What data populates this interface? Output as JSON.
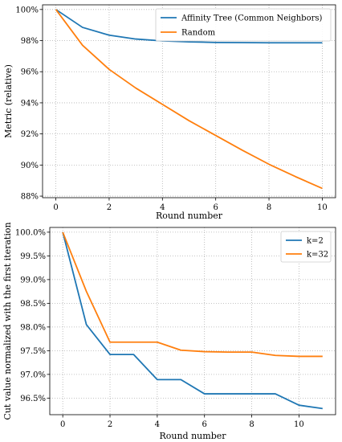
{
  "chart_data": [
    {
      "type": "line",
      "title": "",
      "xlabel": "Round number",
      "ylabel": "Metric (relative)",
      "x": [
        0,
        1,
        2,
        3,
        4,
        5,
        6,
        7,
        8,
        9,
        10
      ],
      "xlim": [
        -0.5,
        10.5
      ],
      "ylim": [
        87.9,
        100.3
      ],
      "xticks": [
        0,
        2,
        4,
        6,
        8,
        10
      ],
      "yticks": [
        88,
        90,
        92,
        94,
        96,
        98,
        100
      ],
      "ytick_labels": [
        "88%",
        "90%",
        "92%",
        "94%",
        "96%",
        "98%",
        "100%"
      ],
      "grid": true,
      "legend_position": "top-right",
      "series": [
        {
          "name": "Affinity Tree (Common Neighbors)",
          "color": "#1f77b4",
          "values": [
            100.0,
            98.85,
            98.35,
            98.1,
            97.98,
            97.92,
            97.88,
            97.87,
            97.86,
            97.86,
            97.86
          ]
        },
        {
          "name": "Random",
          "color": "#ff7f0e",
          "values": [
            100.0,
            97.7,
            96.15,
            94.95,
            93.9,
            92.85,
            91.9,
            90.95,
            90.05,
            89.25,
            88.5
          ]
        }
      ]
    },
    {
      "type": "line",
      "title": "",
      "xlabel": "Round number",
      "ylabel": "Cut value normalized with the first iteration",
      "x": [
        0,
        1,
        2,
        3,
        4,
        5,
        6,
        7,
        8,
        9,
        10,
        11
      ],
      "xlim": [
        -0.55,
        11.55
      ],
      "ylim": [
        96.15,
        100.1
      ],
      "xticks": [
        0,
        2,
        4,
        6,
        8,
        10
      ],
      "yticks": [
        96.5,
        97.0,
        97.5,
        98.0,
        98.5,
        99.0,
        99.5,
        100.0
      ],
      "ytick_labels": [
        "96.5%",
        "97.0%",
        "97.5%",
        "98.0%",
        "98.5%",
        "99.0%",
        "99.5%",
        "100.0%"
      ],
      "grid": true,
      "legend_position": "top-right",
      "series": [
        {
          "name": "k=2",
          "color": "#1f77b4",
          "values": [
            100.0,
            98.05,
            97.42,
            97.42,
            96.89,
            96.89,
            96.59,
            96.59,
            96.59,
            96.59,
            96.35,
            96.28
          ]
        },
        {
          "name": "k=32",
          "color": "#ff7f0e",
          "values": [
            100.0,
            98.75,
            97.68,
            97.68,
            97.68,
            97.51,
            97.48,
            97.47,
            97.47,
            97.4,
            97.38,
            97.38
          ]
        }
      ]
    }
  ]
}
